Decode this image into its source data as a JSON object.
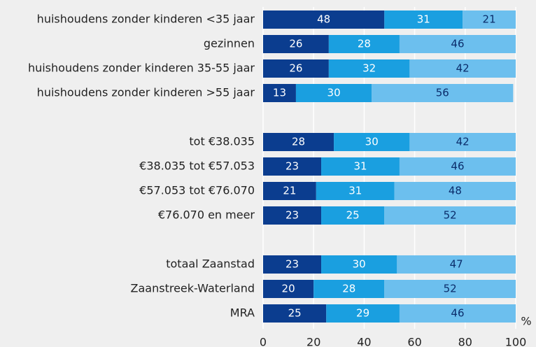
{
  "chart_data": {
    "type": "stacked-bar-horizontal",
    "categories": [
      "huishoudens zonder kinderen <35 jaar",
      "gezinnen",
      "huishoudens zonder kinderen 35-55 jaar",
      "huishoudens zonder kinderen >55 jaar",
      null,
      "tot €38.035",
      "€38.035 tot €57.053",
      "€57.053 tot €76.070",
      "€76.070 en meer",
      null,
      "totaal Zaanstad",
      "Zaanstreek-Waterland",
      "MRA"
    ],
    "series": [
      {
        "color": "#0b3d8f",
        "values": [
          48,
          26,
          26,
          13,
          null,
          28,
          23,
          21,
          23,
          null,
          23,
          20,
          25
        ]
      },
      {
        "color": "#1a9fe0",
        "values": [
          31,
          28,
          32,
          30,
          null,
          30,
          31,
          31,
          25,
          null,
          30,
          28,
          29
        ]
      },
      {
        "color": "#6cbfee",
        "values": [
          21,
          46,
          42,
          56,
          null,
          42,
          46,
          48,
          52,
          null,
          47,
          52,
          46
        ]
      }
    ],
    "xlabel": "%",
    "xlim": [
      0,
      100
    ],
    "xticks": [
      0,
      20,
      40,
      60,
      80,
      100
    ],
    "grid": true
  }
}
